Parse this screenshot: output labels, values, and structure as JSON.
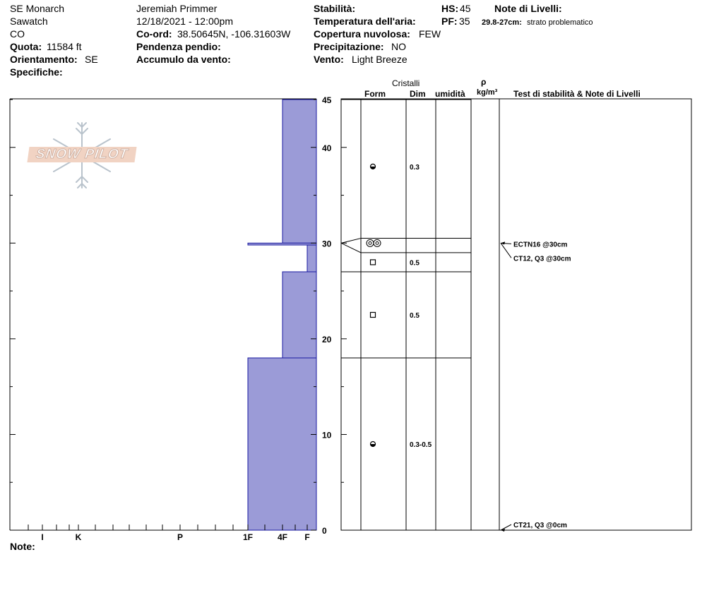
{
  "header": {
    "location": "SE Monarch",
    "range": "Sawatch",
    "state": "CO",
    "elevation_label": "Quota:",
    "elevation_value": "11584 ft",
    "aspect_label": "Orientamento:",
    "aspect_value": "SE",
    "specifics_label": "Specifiche:",
    "observer": "Jeremiah Primmer",
    "datetime": "12/18/2021 - 12:00pm",
    "coords_label": "Co-ord:",
    "coords_value": "38.50645N, -106.31603W",
    "slope_label": "Pendenza pendio:",
    "wind_loading_label": "Accumulo da vento:",
    "stability_label": "Stabilità:",
    "air_temp_label": "Temperatura dell'aria:",
    "cloud_label": "Copertura nuvolosa:",
    "cloud_value": "FEW",
    "precip_label": "Precipitazione:",
    "precip_value": "NO",
    "wind_label": "Vento:",
    "wind_value": "Light Breeze",
    "hs_label": "HS:",
    "hs_value": "45",
    "pf_label": "PF:",
    "pf_value": "35",
    "layer_notes_label": "Note di Livelli:",
    "layer_note_range": "29.8-27cm:",
    "layer_note_text": "strato problematico"
  },
  "columns": {
    "crystals": "Cristalli",
    "form": "Form",
    "size": "Dim",
    "moisture": "umidità",
    "density_symbol": "ρ",
    "density_unit": "kg/m³",
    "stability_notes": "Test di stabilità & Note di Livelli"
  },
  "logo_text": "SNOW PILOT",
  "footer": {
    "notes_label": "Note:"
  },
  "colors": {
    "hardness_fill": "#9b9bd7",
    "hardness_stroke": "#1a1aa0"
  },
  "chart_data": {
    "type": "snow-profile",
    "y_axis": {
      "min": 0,
      "max": 45,
      "unit": "cm",
      "tick_labels": [
        "45",
        "40",
        "30",
        "20",
        "10",
        "0"
      ]
    },
    "hardness_axis_labels": [
      "I",
      "K",
      "P",
      "1F",
      "4F",
      "F"
    ],
    "hardness_profile": [
      {
        "top": 45,
        "bottom": 30,
        "hardness": "4F"
      },
      {
        "top": 30,
        "bottom": 29.8,
        "hardness": "1F"
      },
      {
        "top": 29.8,
        "bottom": 27,
        "hardness": "F"
      },
      {
        "top": 27,
        "bottom": 18,
        "hardness": "4F"
      },
      {
        "top": 18,
        "bottom": 0,
        "hardness": "1F"
      }
    ],
    "layer_boundaries": [
      45,
      30.5,
      29,
      27,
      18
    ],
    "layers": [
      {
        "depth": 38,
        "form": "rounded-grains-icon",
        "size": "0.3"
      },
      {
        "depth": 30,
        "form": "surface-hoar-icon",
        "size": ""
      },
      {
        "depth": 28,
        "form": "faceted-crystals-icon",
        "size": "0.5"
      },
      {
        "depth": 22.5,
        "form": "faceted-crystals-icon",
        "size": "0.5"
      },
      {
        "depth": 9,
        "form": "rounded-grains-icon",
        "size": "0.3-0.5"
      }
    ],
    "tests": [
      {
        "label": "ECTN16 @30cm",
        "depth": 30
      },
      {
        "label": "CT12, Q3 @30cm",
        "depth": 30
      },
      {
        "label": "CT21, Q3 @0cm",
        "depth": 0
      }
    ]
  }
}
